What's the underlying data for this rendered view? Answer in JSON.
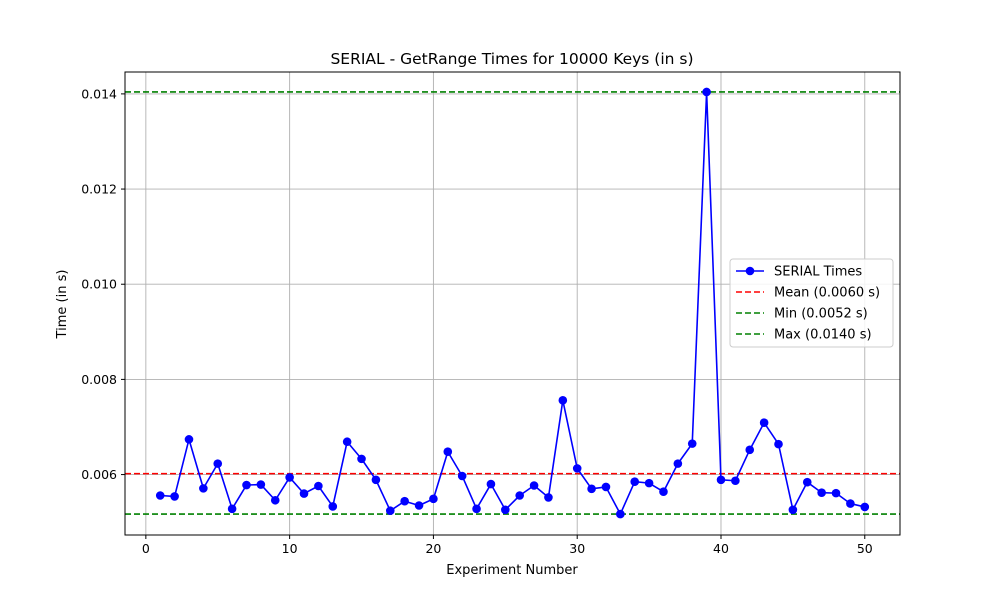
{
  "chart_data": {
    "type": "line",
    "title": "SERIAL - GetRange Times for 10000 Keys (in s)",
    "xlabel": "Experiment Number",
    "ylabel": "Time (in s)",
    "xlim": [
      -1.45,
      52.45
    ],
    "ylim": [
      0.00473,
      0.01446
    ],
    "xticks": [
      0,
      10,
      20,
      30,
      40,
      50
    ],
    "xtick_labels": [
      "0",
      "10",
      "20",
      "30",
      "40",
      "50"
    ],
    "yticks": [
      0.006,
      0.008,
      0.01,
      0.012,
      0.014
    ],
    "ytick_labels": [
      "0.006",
      "0.008",
      "0.010",
      "0.012",
      "0.014"
    ],
    "grid": true,
    "legend_position": "center-right",
    "series": [
      {
        "name": "SERIAL Times",
        "color": "#0000ff",
        "marker": "circle",
        "x": [
          1,
          2,
          3,
          4,
          5,
          6,
          7,
          8,
          9,
          10,
          11,
          12,
          13,
          14,
          15,
          16,
          17,
          18,
          19,
          20,
          21,
          22,
          23,
          24,
          25,
          26,
          27,
          28,
          29,
          30,
          31,
          32,
          33,
          34,
          35,
          36,
          37,
          38,
          39,
          40,
          41,
          42,
          43,
          44,
          45,
          46,
          47,
          48,
          49,
          50
        ],
        "values": [
          0.00556,
          0.00554,
          0.00674,
          0.00571,
          0.00623,
          0.00528,
          0.00578,
          0.00579,
          0.00546,
          0.00594,
          0.0056,
          0.00576,
          0.00533,
          0.00669,
          0.00633,
          0.00589,
          0.00524,
          0.00544,
          0.00535,
          0.00549,
          0.00648,
          0.00597,
          0.00528,
          0.0058,
          0.00526,
          0.00556,
          0.00577,
          0.00552,
          0.00756,
          0.00613,
          0.0057,
          0.00574,
          0.00517,
          0.00585,
          0.00582,
          0.00564,
          0.00623,
          0.00665,
          0.01404,
          0.00589,
          0.00587,
          0.00652,
          0.00709,
          0.00664,
          0.00526,
          0.00584,
          0.00562,
          0.00561,
          0.00539,
          0.00532
        ]
      }
    ],
    "reference_lines": [
      {
        "name": "Mean (0.0060 s)",
        "value": 0.00602,
        "color": "#ff0000",
        "style": "dashed"
      },
      {
        "name": "Min (0.0052 s)",
        "value": 0.00517,
        "color": "#008000",
        "style": "dashed"
      },
      {
        "name": "Max (0.0140 s)",
        "value": 0.01404,
        "color": "#008000",
        "style": "dashed"
      }
    ],
    "colors": {
      "grid": "#b0b0b0",
      "axes": "#000000",
      "legend_border": "#cccccc"
    }
  }
}
